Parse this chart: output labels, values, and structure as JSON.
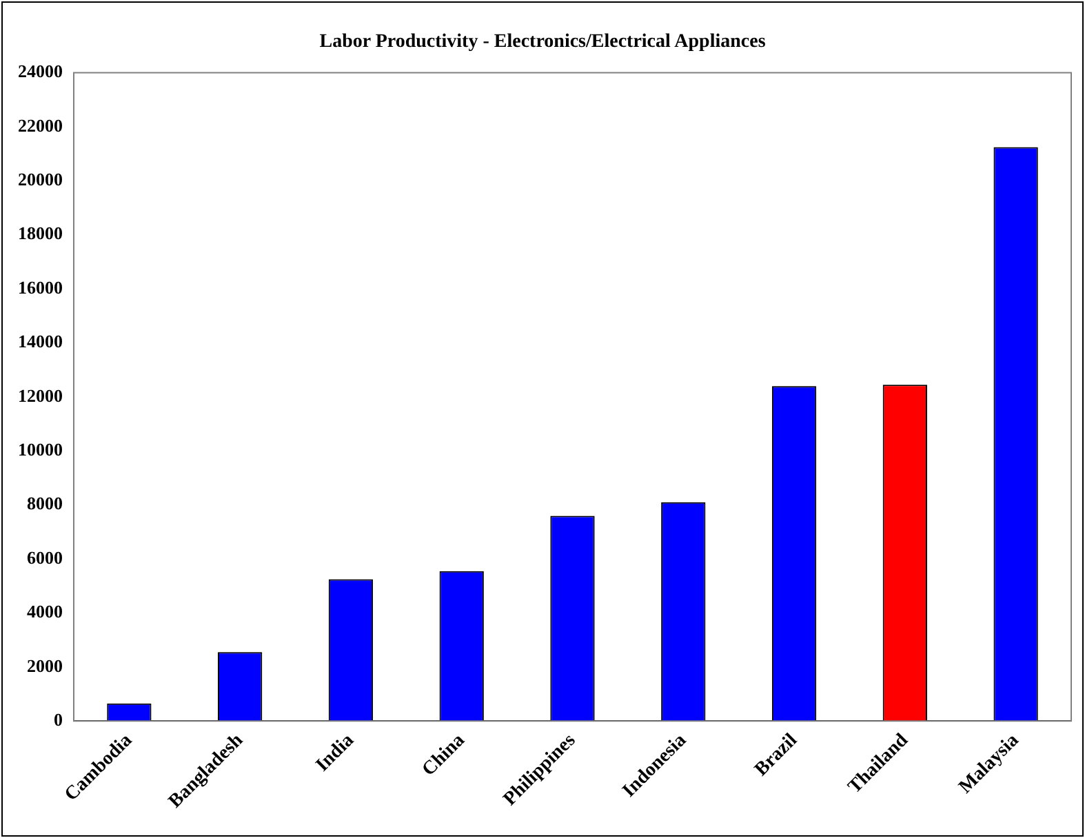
{
  "chart_data": {
    "type": "bar",
    "title": "Labor Productivity - Electronics/Electrical Appliances",
    "categories": [
      "Cambodia",
      "Bangladesh",
      "India",
      "China",
      "Philippines",
      "Indonesia",
      "Brazil",
      "Thailand",
      "Malaysia"
    ],
    "values": [
      650,
      2550,
      5250,
      5550,
      7600,
      8100,
      12400,
      12450,
      21250
    ],
    "colors": [
      "#0000ff",
      "#0000ff",
      "#0000ff",
      "#0000ff",
      "#0000ff",
      "#0000ff",
      "#0000ff",
      "#ff0000",
      "#0000ff"
    ],
    "ylim": [
      0,
      24000
    ],
    "yticks": [
      0,
      2000,
      4000,
      6000,
      8000,
      10000,
      12000,
      14000,
      16000,
      18000,
      20000,
      22000,
      24000
    ],
    "grid": false
  }
}
